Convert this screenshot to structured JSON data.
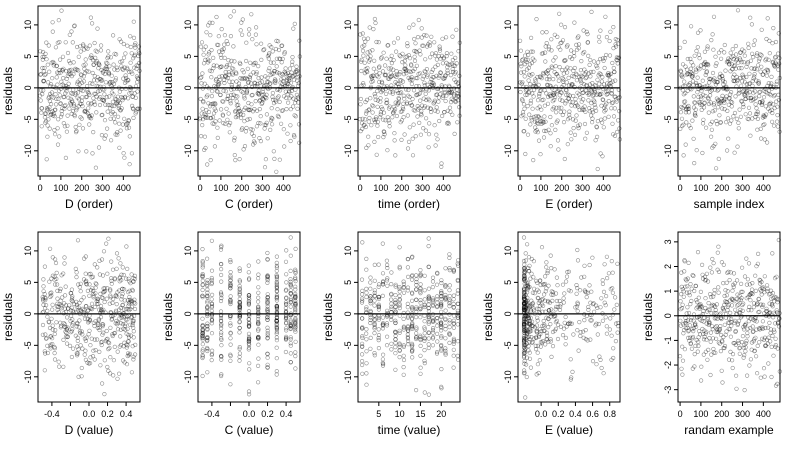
{
  "chart_data": [
    {
      "type": "scatter",
      "xlabel": "D (order)",
      "ylabel": "residuals",
      "xlim": [
        -10,
        480
      ],
      "ylim": [
        -14,
        13
      ],
      "xticks": [
        0,
        100,
        200,
        300,
        400
      ],
      "yticks": [
        -10,
        -5,
        0,
        5,
        10
      ],
      "reference_line": 0,
      "x_kind": "index",
      "seed": 11,
      "n_points": 480,
      "y_sd": 4.5
    },
    {
      "type": "scatter",
      "xlabel": "C (order)",
      "ylabel": "residuals",
      "xlim": [
        -10,
        480
      ],
      "ylim": [
        -14,
        13
      ],
      "xticks": [
        0,
        100,
        200,
        300,
        400
      ],
      "yticks": [
        -10,
        -5,
        0,
        5,
        10
      ],
      "reference_line": 0,
      "x_kind": "index",
      "seed": 23,
      "n_points": 480,
      "y_sd": 4.5
    },
    {
      "type": "scatter",
      "xlabel": "time (order)",
      "ylabel": "residuals",
      "xlim": [
        -10,
        480
      ],
      "ylim": [
        -14,
        13
      ],
      "xticks": [
        0,
        100,
        200,
        300,
        400
      ],
      "yticks": [
        -10,
        -5,
        0,
        5,
        10
      ],
      "reference_line": 0,
      "x_kind": "index",
      "seed": 37,
      "n_points": 480,
      "y_sd": 4.5
    },
    {
      "type": "scatter",
      "xlabel": "E (order)",
      "ylabel": "residuals",
      "xlim": [
        -10,
        480
      ],
      "ylim": [
        -14,
        13
      ],
      "xticks": [
        0,
        100,
        200,
        300,
        400
      ],
      "yticks": [
        -10,
        -5,
        0,
        5,
        10
      ],
      "reference_line": 0,
      "x_kind": "index",
      "seed": 41,
      "n_points": 480,
      "y_sd": 4.5
    },
    {
      "type": "scatter",
      "xlabel": "sample index",
      "ylabel": "residuals",
      "xlim": [
        -10,
        480
      ],
      "ylim": [
        -14,
        13
      ],
      "xticks": [
        0,
        100,
        200,
        300,
        400
      ],
      "yticks": [
        -10,
        -5,
        0,
        5,
        10
      ],
      "reference_line": 0,
      "x_kind": "index",
      "seed": 53,
      "n_points": 480,
      "y_sd": 4.5
    },
    {
      "type": "scatter",
      "xlabel": "D (value)",
      "ylabel": "residuals",
      "xlim": [
        -0.55,
        0.55
      ],
      "ylim": [
        -14,
        13
      ],
      "xticks": [
        -0.4,
        -0.2,
        0.0,
        0.2,
        0.4
      ],
      "xtick_labels": [
        "-0.4",
        "",
        "0.0",
        "0.2",
        "0.4"
      ],
      "yticks": [
        -10,
        -5,
        0,
        5,
        10
      ],
      "reference_line": 0,
      "x_kind": "uniform",
      "x_range": [
        -0.5,
        0.5
      ],
      "seed": 61,
      "n_points": 480,
      "y_sd": 4.5
    },
    {
      "type": "scatter",
      "xlabel": "C (value)",
      "ylabel": "residuals",
      "xlim": [
        -0.55,
        0.55
      ],
      "ylim": [
        -14,
        13
      ],
      "xticks": [
        -0.4,
        -0.2,
        0.0,
        0.2,
        0.4
      ],
      "xtick_labels": [
        "-0.4",
        "",
        "0.0",
        "0.2",
        "0.4"
      ],
      "yticks": [
        -10,
        -5,
        0,
        5,
        10
      ],
      "reference_line": 0,
      "x_kind": "discrete",
      "x_levels": [
        -0.5,
        -0.45,
        -0.4,
        -0.3,
        -0.2,
        -0.1,
        0.0,
        0.1,
        0.2,
        0.3,
        0.4,
        0.45,
        0.5
      ],
      "seed": 71,
      "n_points": 480,
      "y_sd": 4.5
    },
    {
      "type": "scatter",
      "xlabel": "time (value)",
      "ylabel": "residuals",
      "xlim": [
        0,
        24.5
      ],
      "ylim": [
        -14,
        13
      ],
      "xticks": [
        5,
        10,
        15,
        20
      ],
      "yticks": [
        -10,
        -5,
        0,
        5,
        10
      ],
      "reference_line": 0,
      "x_kind": "discrete",
      "x_levels": [
        1,
        2,
        3,
        4,
        5,
        6,
        7,
        8,
        9,
        10,
        11,
        12,
        13,
        14,
        15,
        16,
        17,
        18,
        19,
        20,
        21,
        22,
        23,
        24
      ],
      "seed": 83,
      "n_points": 480,
      "y_sd": 4.5
    },
    {
      "type": "scatter",
      "xlabel": "E (value)",
      "ylabel": "residuals",
      "xlim": [
        -0.27,
        0.92
      ],
      "ylim": [
        -14,
        13
      ],
      "xticks": [
        0.0,
        0.2,
        0.4,
        0.6,
        0.8
      ],
      "xtick_labels": [
        "0.0",
        "0.2",
        "0.4",
        "0.6",
        "0.8"
      ],
      "yticks": [
        -10,
        -5,
        0,
        5,
        10
      ],
      "reference_line": 0,
      "x_kind": "skewed",
      "x_range": [
        -0.2,
        0.9
      ],
      "seed": 97,
      "n_points": 480,
      "y_sd": 4.5
    },
    {
      "type": "scatter",
      "xlabel": "randam example",
      "ylabel": "residuals",
      "xlim": [
        -10,
        480
      ],
      "ylim": [
        -3.5,
        3.4
      ],
      "xticks": [
        0,
        100,
        200,
        300,
        400
      ],
      "yticks": [
        -3,
        -2,
        -1,
        0,
        1,
        2,
        3
      ],
      "reference_line": 0,
      "x_kind": "index",
      "seed": 101,
      "n_points": 480,
      "y_sd": 1.1
    }
  ]
}
